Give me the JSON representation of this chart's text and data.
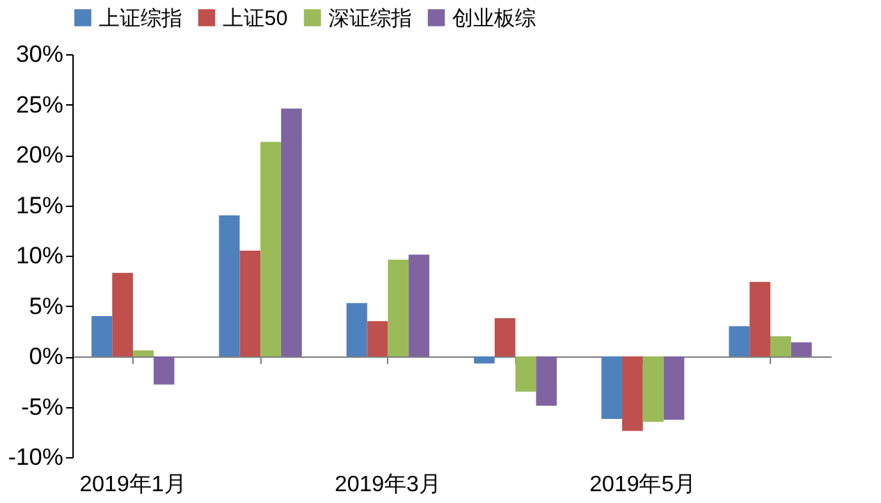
{
  "chart_data": {
    "type": "bar",
    "categories": [
      "2019年1月",
      null,
      "2019年3月",
      null,
      "2019年5月",
      null
    ],
    "series": [
      {
        "name": "上证综指",
        "color": "#4f81bd",
        "values": [
          4.0,
          14.0,
          5.3,
          -0.7,
          -6.2,
          3.0
        ]
      },
      {
        "name": "上证50",
        "color": "#c0504d",
        "values": [
          8.3,
          10.5,
          3.5,
          3.8,
          -7.4,
          7.4
        ]
      },
      {
        "name": "深证综指",
        "color": "#9bbb59",
        "values": [
          0.6,
          21.3,
          9.6,
          -3.5,
          -6.5,
          2.0
        ]
      },
      {
        "name": "创业板综",
        "color": "#8064a2",
        "values": [
          -2.8,
          24.6,
          10.1,
          -4.9,
          -6.3,
          1.4
        ]
      }
    ],
    "ylim": [
      -10,
      30
    ],
    "yticks": [
      {
        "value": -10,
        "label": "-10%"
      },
      {
        "value": -5,
        "label": "-5%"
      },
      {
        "value": 0,
        "label": "0%"
      },
      {
        "value": 5,
        "label": "5%"
      },
      {
        "value": 10,
        "label": "10%"
      },
      {
        "value": 15,
        "label": "15%"
      },
      {
        "value": 20,
        "label": "20%"
      },
      {
        "value": 25,
        "label": "25%"
      },
      {
        "value": 30,
        "label": "30%"
      }
    ],
    "legend": "top"
  }
}
